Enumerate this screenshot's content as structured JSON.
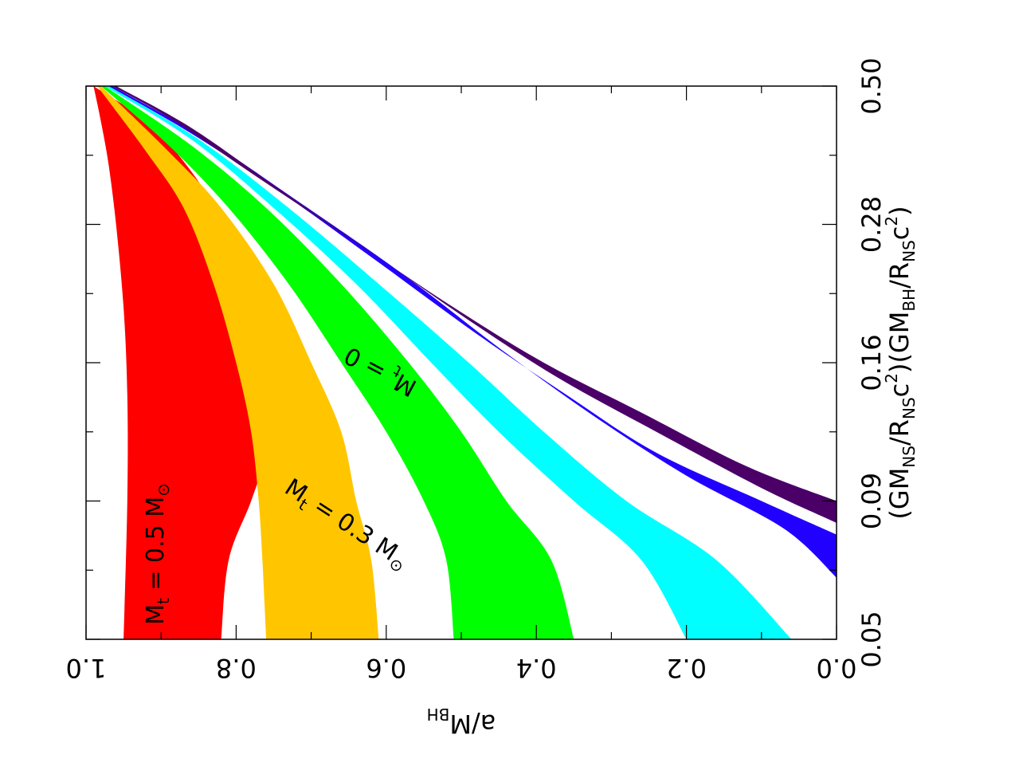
{
  "chart_data": {
    "type": "area",
    "orientation": "rotated-90",
    "xlabel": {
      "base": "a/M",
      "sub": "BH"
    },
    "ylabel": {
      "p1": "(GM",
      "s1": "NS",
      "p2": "/R",
      "s2": "NS",
      "p3": "c",
      "e1": "2",
      "p4": ")(GM",
      "s3": "BH",
      "p5": "/R",
      "s4": "NS",
      "p6": "c",
      "e2": "2",
      "p7": ")"
    },
    "xlim": [
      1.0,
      0.0
    ],
    "ylim": [
      0.05,
      0.5
    ],
    "y_scale": "nonlinear",
    "x_ticks": [
      "1.0",
      "0.8",
      "0.6",
      "0.4",
      "0.2",
      "0.0"
    ],
    "y_ticks": [
      "0.05",
      "0.09",
      "0.16",
      "0.28",
      "0.50"
    ],
    "series": [
      {
        "color": "#ff0000",
        "lower": [
          [
            0.82,
            0.05
          ],
          [
            0.81,
            0.07
          ],
          [
            0.78,
            0.09
          ],
          [
            0.76,
            0.11
          ],
          [
            0.75,
            0.14
          ],
          [
            0.76,
            0.18
          ],
          [
            0.79,
            0.24
          ],
          [
            0.84,
            0.32
          ],
          [
            0.91,
            0.42
          ],
          [
            0.99,
            0.5
          ]
        ],
        "upper": [
          [
            0.95,
            0.05
          ],
          [
            0.945,
            0.09
          ],
          [
            0.945,
            0.14
          ],
          [
            0.95,
            0.2
          ],
          [
            0.96,
            0.28
          ],
          [
            0.97,
            0.36
          ],
          [
            0.98,
            0.43
          ],
          [
            0.99,
            0.5
          ]
        ]
      },
      {
        "color": "#ffc600",
        "lower": [
          [
            0.61,
            0.05
          ],
          [
            0.62,
            0.07
          ],
          [
            0.64,
            0.09
          ],
          [
            0.66,
            0.12
          ],
          [
            0.7,
            0.16
          ],
          [
            0.75,
            0.22
          ],
          [
            0.82,
            0.3
          ],
          [
            0.89,
            0.38
          ],
          [
            0.98,
            0.5
          ]
        ],
        "upper": [
          [
            0.76,
            0.05
          ],
          [
            0.765,
            0.07
          ],
          [
            0.77,
            0.09
          ],
          [
            0.78,
            0.12
          ],
          [
            0.8,
            0.16
          ],
          [
            0.83,
            0.22
          ],
          [
            0.87,
            0.3
          ],
          [
            0.92,
            0.38
          ],
          [
            0.985,
            0.5
          ]
        ]
      },
      {
        "color": "#00ff00",
        "lower": [
          [
            0.35,
            0.05
          ],
          [
            0.38,
            0.07
          ],
          [
            0.44,
            0.09
          ],
          [
            0.5,
            0.12
          ],
          [
            0.57,
            0.16
          ],
          [
            0.66,
            0.22
          ],
          [
            0.76,
            0.3
          ],
          [
            0.86,
            0.39
          ],
          [
            0.975,
            0.5
          ]
        ],
        "upper": [
          [
            0.51,
            0.05
          ],
          [
            0.52,
            0.07
          ],
          [
            0.55,
            0.09
          ],
          [
            0.6,
            0.12
          ],
          [
            0.66,
            0.16
          ],
          [
            0.73,
            0.22
          ],
          [
            0.81,
            0.3
          ],
          [
            0.89,
            0.39
          ],
          [
            0.98,
            0.5
          ]
        ]
      },
      {
        "color": "#00ffff",
        "lower": [
          [
            0.06,
            0.05
          ],
          [
            0.16,
            0.07
          ],
          [
            0.28,
            0.09
          ],
          [
            0.39,
            0.12
          ],
          [
            0.49,
            0.16
          ],
          [
            0.61,
            0.22
          ],
          [
            0.73,
            0.3
          ],
          [
            0.85,
            0.4
          ],
          [
            0.97,
            0.5
          ]
        ],
        "upper": [
          [
            0.2,
            0.05
          ],
          [
            0.26,
            0.07
          ],
          [
            0.35,
            0.09
          ],
          [
            0.45,
            0.12
          ],
          [
            0.54,
            0.16
          ],
          [
            0.64,
            0.22
          ],
          [
            0.75,
            0.3
          ],
          [
            0.86,
            0.4
          ],
          [
            0.975,
            0.5
          ]
        ]
      },
      {
        "color": "#2200ff",
        "lower": [
          [
            0.0,
            0.065
          ],
          [
            0.07,
            0.08
          ],
          [
            0.2,
            0.1
          ],
          [
            0.33,
            0.13
          ],
          [
            0.45,
            0.17
          ],
          [
            0.58,
            0.23
          ],
          [
            0.72,
            0.31
          ],
          [
            0.84,
            0.4
          ],
          [
            0.965,
            0.5
          ]
        ],
        "upper": [
          [
            0.0,
            0.078
          ],
          [
            0.1,
            0.09
          ],
          [
            0.24,
            0.11
          ],
          [
            0.36,
            0.14
          ],
          [
            0.48,
            0.18
          ],
          [
            0.61,
            0.24
          ],
          [
            0.74,
            0.32
          ],
          [
            0.86,
            0.41
          ],
          [
            0.97,
            0.5
          ]
        ]
      },
      {
        "color": "#4b0068",
        "lower": [
          [
            0.0,
            0.082
          ],
          [
            0.1,
            0.095
          ],
          [
            0.24,
            0.12
          ],
          [
            0.37,
            0.15
          ],
          [
            0.49,
            0.19
          ],
          [
            0.62,
            0.25
          ],
          [
            0.75,
            0.33
          ],
          [
            0.86,
            0.42
          ],
          [
            0.96,
            0.5
          ]
        ],
        "upper": [
          [
            0.0,
            0.09
          ],
          [
            0.12,
            0.104
          ],
          [
            0.26,
            0.13
          ],
          [
            0.39,
            0.16
          ],
          [
            0.51,
            0.2
          ],
          [
            0.64,
            0.26
          ],
          [
            0.77,
            0.34
          ],
          [
            0.88,
            0.43
          ],
          [
            0.965,
            0.5
          ]
        ]
      }
    ],
    "annotations": [
      {
        "text": "M",
        "sub": "t",
        "rest": " = 0.5 M",
        "sym": "⊙"
      },
      {
        "text": "M",
        "sub": "t",
        "rest": " = 0.3 M",
        "sym": "⊙"
      },
      {
        "text": "M",
        "sub": "t",
        "rest": " = 0",
        "sym": ""
      }
    ]
  }
}
